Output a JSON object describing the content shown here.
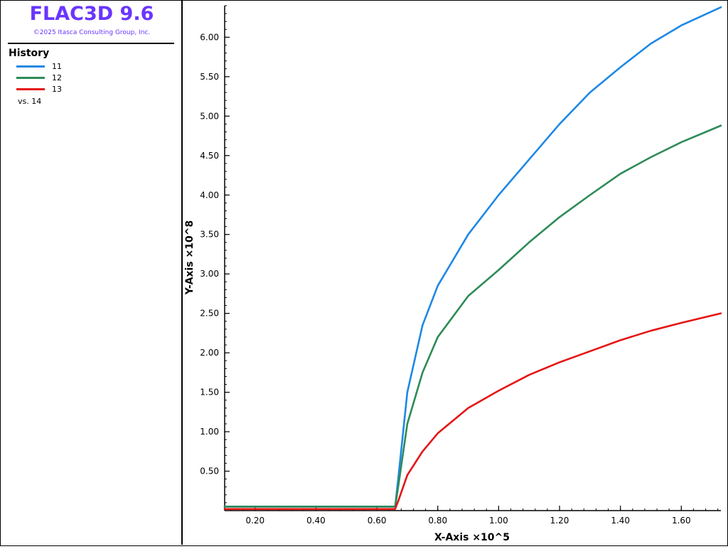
{
  "app": {
    "title": "FLAC3D 9.6",
    "copyright": "©2025 Itasca Consulting Group, Inc."
  },
  "legend": {
    "title": "History",
    "items": [
      {
        "label": "11",
        "color": "#1e88e5"
      },
      {
        "label": "12",
        "color": "#2e8b57"
      },
      {
        "label": "13",
        "color": "#e51414"
      }
    ],
    "vs_label": "vs. 14"
  },
  "chart_data": {
    "type": "line",
    "xlabel": "X-Axis ×10^5",
    "ylabel": "Y-Axis ×10^8",
    "xlim": [
      0.1,
      1.73
    ],
    "ylim": [
      0.0,
      6.4
    ],
    "xticks": [
      0.2,
      0.4,
      0.6,
      0.8,
      1.0,
      1.2,
      1.4,
      1.6
    ],
    "xtick_labels": [
      "0.20",
      "0.40",
      "0.60",
      "0.80",
      "1.00",
      "1.20",
      "1.40",
      "1.60"
    ],
    "yticks": [
      0.5,
      1.0,
      1.5,
      2.0,
      2.5,
      3.0,
      3.5,
      4.0,
      4.5,
      5.0,
      5.5,
      6.0
    ],
    "ytick_labels": [
      "0.50",
      "1.00",
      "1.50",
      "2.00",
      "2.50",
      "3.00",
      "3.50",
      "4.00",
      "4.50",
      "5.00",
      "5.50",
      "6.00"
    ],
    "grid": false,
    "legend_position": "left-panel",
    "series": [
      {
        "name": "11",
        "color": "#1e88e5",
        "x": [
          0.1,
          0.66,
          0.67,
          0.7,
          0.75,
          0.8,
          0.9,
          1.0,
          1.1,
          1.2,
          1.3,
          1.4,
          1.5,
          1.6,
          1.73
        ],
        "y": [
          0.05,
          0.05,
          0.4,
          1.5,
          2.35,
          2.85,
          3.5,
          4.0,
          4.45,
          4.9,
          5.3,
          5.62,
          5.92,
          6.15,
          6.38
        ]
      },
      {
        "name": "12",
        "color": "#2e8b57",
        "x": [
          0.1,
          0.66,
          0.67,
          0.7,
          0.75,
          0.8,
          0.9,
          1.0,
          1.1,
          1.2,
          1.3,
          1.4,
          1.5,
          1.6,
          1.73
        ],
        "y": [
          0.05,
          0.05,
          0.3,
          1.1,
          1.75,
          2.2,
          2.72,
          3.05,
          3.4,
          3.72,
          4.0,
          4.27,
          4.48,
          4.67,
          4.88
        ]
      },
      {
        "name": "13",
        "color": "#e51414",
        "x": [
          0.1,
          0.66,
          0.67,
          0.7,
          0.75,
          0.8,
          0.9,
          1.0,
          1.1,
          1.2,
          1.3,
          1.4,
          1.5,
          1.6,
          1.73
        ],
        "y": [
          0.02,
          0.02,
          0.12,
          0.45,
          0.75,
          0.98,
          1.3,
          1.52,
          1.72,
          1.88,
          2.02,
          2.16,
          2.28,
          2.38,
          2.5
        ]
      }
    ]
  }
}
